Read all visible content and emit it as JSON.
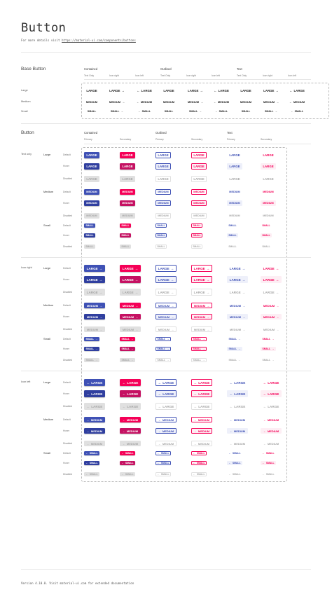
{
  "header": {
    "title": "Button",
    "subtitle_prefix": "For more details visit ",
    "subtitle_link": "https://material-ui.com/components/buttons"
  },
  "base_section": {
    "title": "Base Button",
    "groups": [
      {
        "name": "Contained",
        "columns": [
          "Text Only",
          "Icon right",
          "Icon left"
        ]
      },
      {
        "name": "Outlined",
        "columns": [
          "Text Only",
          "Icon right",
          "Icon left"
        ]
      },
      {
        "name": "Text",
        "columns": [
          "Text Only",
          "Icon right",
          "Icon left"
        ]
      }
    ],
    "rows": [
      {
        "label": "Large",
        "text": "LARGE"
      },
      {
        "label": "Medium",
        "text": "MEDIUM"
      },
      {
        "label": "Small",
        "text": "SMALL"
      }
    ]
  },
  "button_section": {
    "title": "Button",
    "groups": [
      {
        "name": "Contained",
        "columns": [
          "Primary",
          "Secondary"
        ]
      },
      {
        "name": "Outlined",
        "columns": [
          "Primary",
          "Secondary"
        ]
      },
      {
        "name": "Text",
        "columns": [
          "Primary",
          "Secondary"
        ]
      }
    ],
    "types": [
      "Text only",
      "Icon right",
      "Icon left"
    ],
    "sizes": [
      {
        "label": "Large",
        "text": "LARGE"
      },
      {
        "label": "Medium",
        "text": "MEDIUM"
      },
      {
        "label": "Small",
        "text": "SMALL"
      }
    ],
    "states": [
      "Default",
      "Hover",
      "Disabled"
    ]
  },
  "icons": {
    "arrow_right": "arrow-right-icon",
    "arrow_left": "arrow-left-icon"
  },
  "colors": {
    "primary": "#3f51b5",
    "primary_hover": "#303f9f",
    "secondary": "#f50057",
    "secondary_hover": "#c51162",
    "disabled_bg": "#e0e0e0",
    "disabled_text": "#a6a6a6"
  },
  "footer": {
    "text": "Version 4.10.0. Visit material-ui.com for extended documentation"
  }
}
